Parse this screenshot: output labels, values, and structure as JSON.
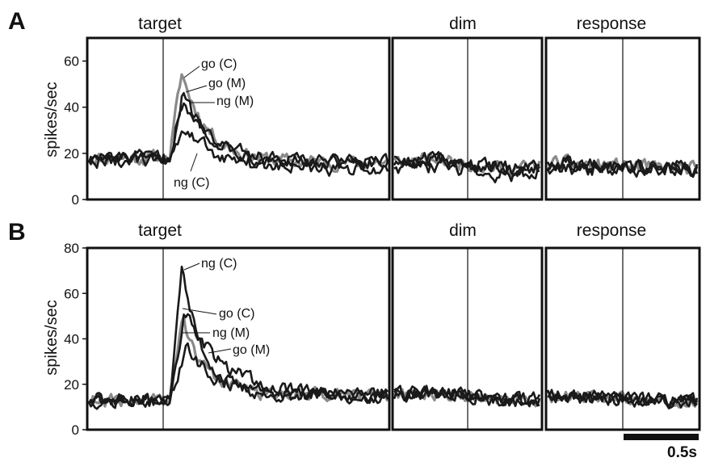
{
  "panels": [
    {
      "label": "A",
      "ylabel": "spikes/sec",
      "epochs": [
        "target",
        "dim",
        "response"
      ],
      "annotations": [
        "go (C)",
        "go (M)",
        "ng (M)",
        "ng (C)"
      ]
    },
    {
      "label": "B",
      "ylabel": "spikes/sec",
      "epochs": [
        "target",
        "dim",
        "response"
      ],
      "annotations": [
        "ng (C)",
        "go (C)",
        "ng (M)",
        "go (M)"
      ]
    }
  ],
  "scale_bar": {
    "label": "0.5s",
    "seconds": 0.5
  },
  "colors": {
    "line_dark": "#1a1a1a",
    "line_gray": "#8a8a8a",
    "frame": "#111111"
  },
  "chart_data": [
    {
      "type": "line",
      "panel": "A",
      "ylabel": "spikes/sec",
      "ylim": [
        0,
        70
      ],
      "yticks": [
        0,
        20,
        40,
        60
      ],
      "epochs": [
        {
          "name": "target",
          "duration_s": 2.0,
          "event_s": 0.5
        },
        {
          "name": "dim",
          "duration_s": 1.0,
          "event_s": 0.5
        },
        {
          "name": "response",
          "duration_s": 1.0,
          "event_s": 0.5
        }
      ],
      "series": [
        {
          "name": "go (C)",
          "baseline": 18,
          "peak": 55,
          "peak_t": 0.62,
          "tau": 0.18,
          "late": 16,
          "end": 13,
          "rise": 0.08,
          "color": "gray"
        },
        {
          "name": "go (M)",
          "baseline": 18,
          "peak": 46,
          "peak_t": 0.63,
          "tau": 0.2,
          "late": 16,
          "end": 13,
          "rise": 0.08,
          "color": "dark"
        },
        {
          "name": "ng (M)",
          "baseline": 17,
          "peak": 42,
          "peak_t": 0.64,
          "tau": 0.22,
          "late": 16,
          "end": 13,
          "rise": 0.08,
          "color": "dark"
        },
        {
          "name": "ng (C)",
          "baseline": 17,
          "peak": 30,
          "peak_t": 0.66,
          "tau": 0.22,
          "late": 13,
          "end": 13,
          "rise": 0.08,
          "color": "dark"
        }
      ]
    },
    {
      "type": "line",
      "panel": "B",
      "ylabel": "spikes/sec",
      "ylim": [
        0,
        80
      ],
      "yticks": [
        0,
        20,
        40,
        60,
        80
      ],
      "epochs": [
        {
          "name": "target",
          "duration_s": 2.0,
          "event_s": 0.5
        },
        {
          "name": "dim",
          "duration_s": 1.0,
          "event_s": 0.5
        },
        {
          "name": "response",
          "duration_s": 1.0,
          "event_s": 0.5
        }
      ],
      "series": [
        {
          "name": "ng (C)",
          "baseline": 13,
          "peak": 72,
          "peak_t": 0.62,
          "tau": 0.14,
          "late": 15,
          "end": 12,
          "rise": 0.07,
          "color": "dark"
        },
        {
          "name": "go (C)",
          "baseline": 13,
          "peak": 52,
          "peak_t": 0.64,
          "tau": 0.26,
          "late": 15,
          "end": 12,
          "rise": 0.07,
          "color": "dark"
        },
        {
          "name": "ng (M)",
          "baseline": 13,
          "peak": 48,
          "peak_t": 0.63,
          "tau": 0.16,
          "late": 15,
          "end": 12,
          "rise": 0.07,
          "color": "gray"
        },
        {
          "name": "go (M)",
          "baseline": 13,
          "peak": 36,
          "peak_t": 0.66,
          "tau": 0.2,
          "late": 15,
          "end": 12,
          "rise": 0.07,
          "color": "dark"
        }
      ]
    }
  ]
}
